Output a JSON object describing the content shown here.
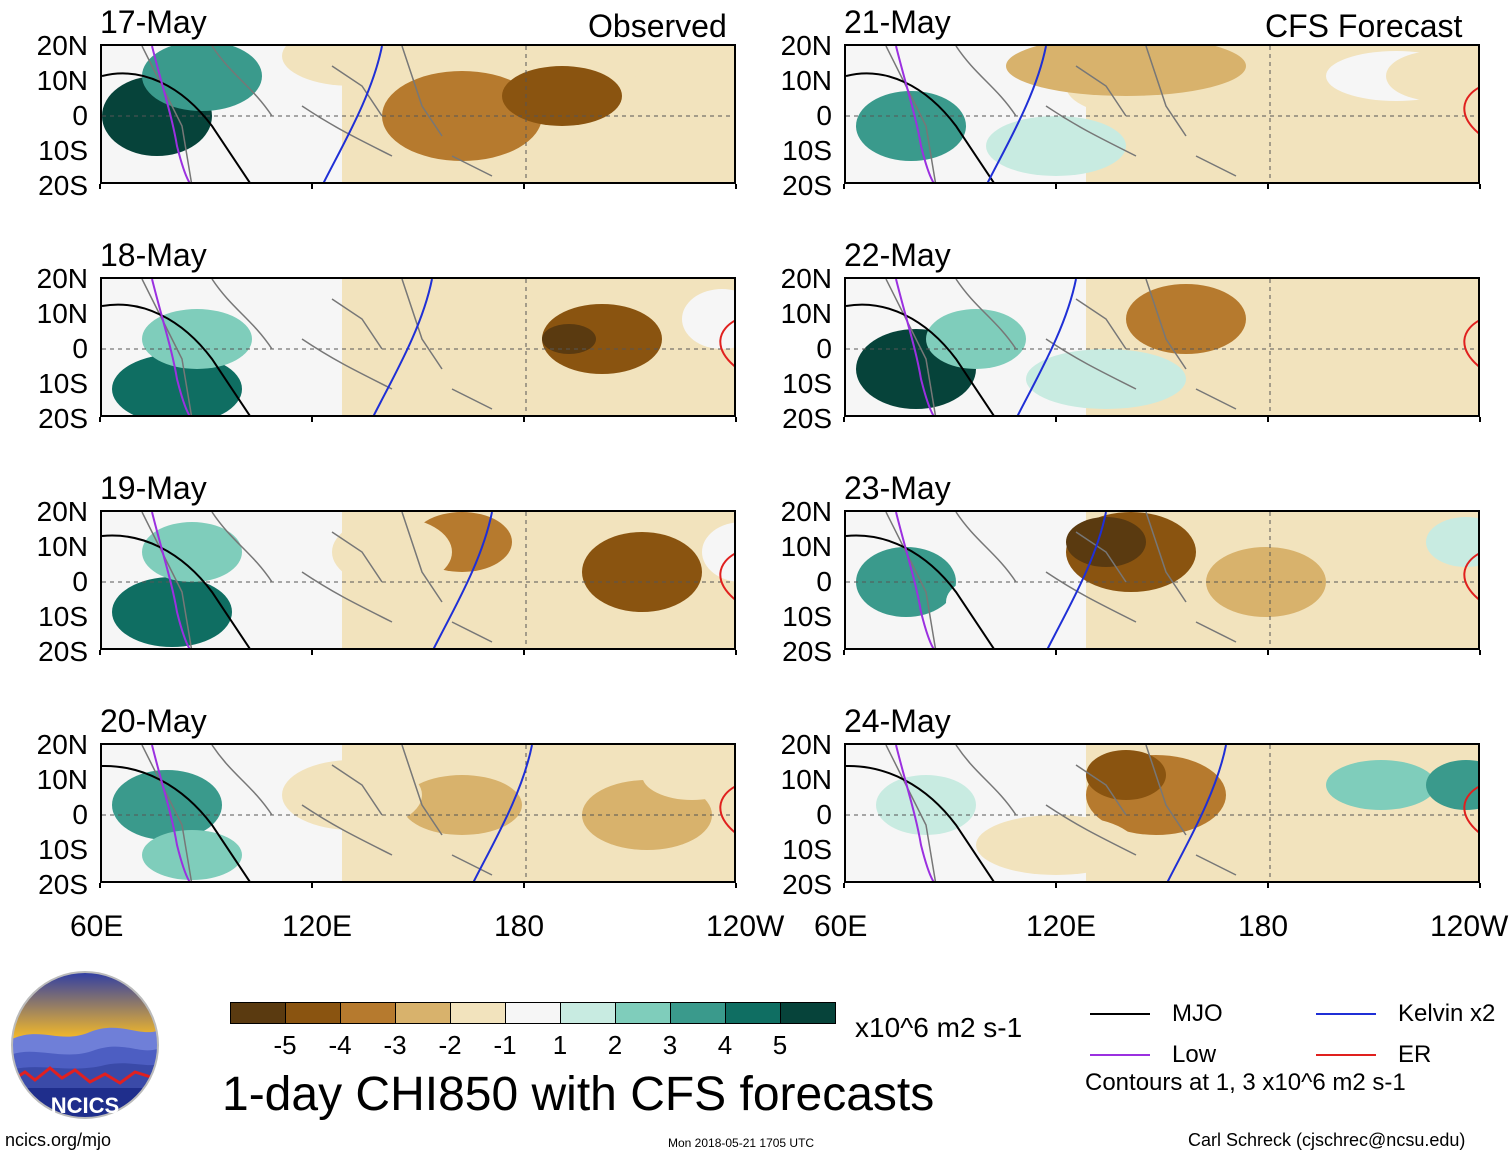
{
  "header": {
    "left_label": "Observed",
    "right_label": "CFS Forecast"
  },
  "panels": [
    {
      "date": "17-May",
      "column": "observed"
    },
    {
      "date": "18-May",
      "column": "observed"
    },
    {
      "date": "19-May",
      "column": "observed"
    },
    {
      "date": "20-May",
      "column": "observed"
    },
    {
      "date": "21-May",
      "column": "forecast"
    },
    {
      "date": "22-May",
      "column": "forecast"
    },
    {
      "date": "23-May",
      "column": "forecast"
    },
    {
      "date": "24-May",
      "column": "forecast"
    }
  ],
  "axes": {
    "y_ticks": [
      "20N",
      "10N",
      "0",
      "10S",
      "20S"
    ],
    "x_ticks": [
      "60E",
      "120E",
      "180",
      "120W"
    ]
  },
  "colorbar": {
    "labels": [
      "-5",
      "-4",
      "-3",
      "-2",
      "-1",
      "1",
      "2",
      "3",
      "4",
      "5"
    ],
    "colors": [
      "#5a3a10",
      "#8a5410",
      "#b67a2e",
      "#d8b26c",
      "#f2e3bd",
      "#f6f6f6",
      "#c8ebe1",
      "#7fcdbb",
      "#3a9a8c",
      "#0f6e62",
      "#06433a"
    ],
    "units": "x10^6 m2 s-1"
  },
  "title": "1-day CHI850 with CFS forecasts",
  "legend": {
    "items": [
      {
        "label": "MJO",
        "color": "#000000"
      },
      {
        "label": "Kelvin x2",
        "color": "#1f2fd6"
      },
      {
        "label": "Low",
        "color": "#9b30e0"
      },
      {
        "label": "ER",
        "color": "#e0201e"
      }
    ],
    "note": "Contours at 1, 3 x10^6 m2 s-1"
  },
  "logo": {
    "text": "NCICS"
  },
  "footer": {
    "url": "ncics.org/mjo",
    "timestamp": "Mon 2018-05-21 1705 UTC",
    "credit": "Carl Schreck (cjschrec@ncsu.edu)"
  }
}
